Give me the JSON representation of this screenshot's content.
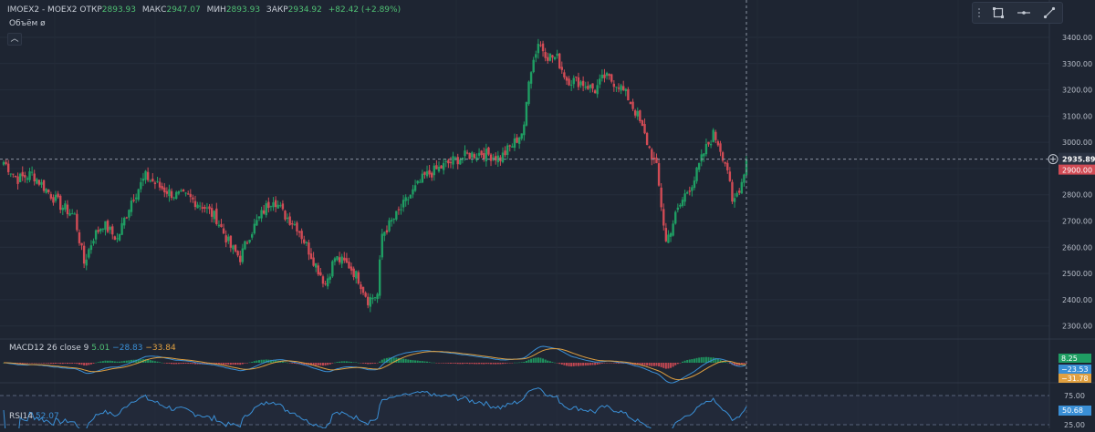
{
  "header": {
    "symbol": "IMOEX2 - MOEX2",
    "open_label": "ОТКР",
    "open_value": "2893.93",
    "high_label": "МАКС",
    "high_value": "2947.07",
    "low_label": "МИН",
    "low_value": "2893.93",
    "close_label": "ЗАКР",
    "close_value": "2934.92",
    "change": "+82.42 (+2.89%)",
    "volume_label": "Объём ø"
  },
  "toolbar": {
    "items": [
      "rectangle-icon",
      "horizontal-line-icon",
      "trend-line-icon"
    ]
  },
  "colors": {
    "background": "#1e2532",
    "up": "#1f9e63",
    "down": "#d14b55",
    "macd": "#3a8fd6",
    "signal": "#e0a040",
    "rsi": "#3a8fd6",
    "price_badge": "#d14b55"
  },
  "macd_indicator": {
    "label": "MACD12 26 close 9",
    "hist_value": "5.01",
    "macd_value": "−28.83",
    "signal_value": "−33.84",
    "scale_values": [
      "8.25",
      "−23.53",
      "−31.78"
    ]
  },
  "rsi_indicator": {
    "label": "RSI14",
    "value": "52.07",
    "scale_values": [
      "75.00",
      "50.68",
      "25.00"
    ]
  },
  "chart_data": {
    "type": "candlestick",
    "title": "IMOEX2 - MOEX2",
    "ylim": [
      2250,
      3480
    ],
    "y_ticks": [
      "3400.00",
      "3300.00",
      "3200.00",
      "3100.00",
      "3000.00",
      "2900.00",
      "2800.00",
      "2700.00",
      "2600.00",
      "2500.00",
      "2400.00",
      "2300.00"
    ],
    "last_price": "2935.89",
    "last_price_value": 2935.89,
    "badge_second": "2900.00",
    "grid": true,
    "anchors": [
      [
        0,
        2925
      ],
      [
        6,
        2860
      ],
      [
        12,
        2880
      ],
      [
        18,
        2820
      ],
      [
        24,
        2760
      ],
      [
        30,
        2720
      ],
      [
        34,
        2540
      ],
      [
        38,
        2640
      ],
      [
        42,
        2690
      ],
      [
        48,
        2630
      ],
      [
        54,
        2780
      ],
      [
        60,
        2870
      ],
      [
        66,
        2830
      ],
      [
        72,
        2800
      ],
      [
        78,
        2790
      ],
      [
        84,
        2760
      ],
      [
        90,
        2710
      ],
      [
        96,
        2600
      ],
      [
        100,
        2560
      ],
      [
        104,
        2650
      ],
      [
        110,
        2740
      ],
      [
        114,
        2790
      ],
      [
        118,
        2730
      ],
      [
        124,
        2680
      ],
      [
        130,
        2570
      ],
      [
        136,
        2460
      ],
      [
        140,
        2560
      ],
      [
        146,
        2530
      ],
      [
        150,
        2480
      ],
      [
        154,
        2400
      ],
      [
        158,
        2420
      ],
      [
        160,
        2650
      ],
      [
        166,
        2720
      ],
      [
        172,
        2800
      ],
      [
        178,
        2870
      ],
      [
        184,
        2900
      ],
      [
        190,
        2930
      ],
      [
        196,
        2950
      ],
      [
        202,
        2960
      ],
      [
        210,
        2940
      ],
      [
        216,
        3000
      ],
      [
        220,
        3050
      ],
      [
        222,
        3250
      ],
      [
        226,
        3380
      ],
      [
        230,
        3330
      ],
      [
        234,
        3320
      ],
      [
        238,
        3240
      ],
      [
        244,
        3230
      ],
      [
        250,
        3200
      ],
      [
        254,
        3250
      ],
      [
        260,
        3220
      ],
      [
        264,
        3170
      ],
      [
        268,
        3100
      ],
      [
        272,
        3000
      ],
      [
        276,
        2900
      ],
      [
        280,
        2620
      ],
      [
        284,
        2720
      ],
      [
        288,
        2800
      ],
      [
        292,
        2860
      ],
      [
        296,
        2960
      ],
      [
        300,
        3030
      ],
      [
        302,
        3000
      ],
      [
        306,
        2900
      ],
      [
        308,
        2760
      ],
      [
        312,
        2850
      ],
      [
        314,
        2935
      ]
    ],
    "count": 315
  }
}
